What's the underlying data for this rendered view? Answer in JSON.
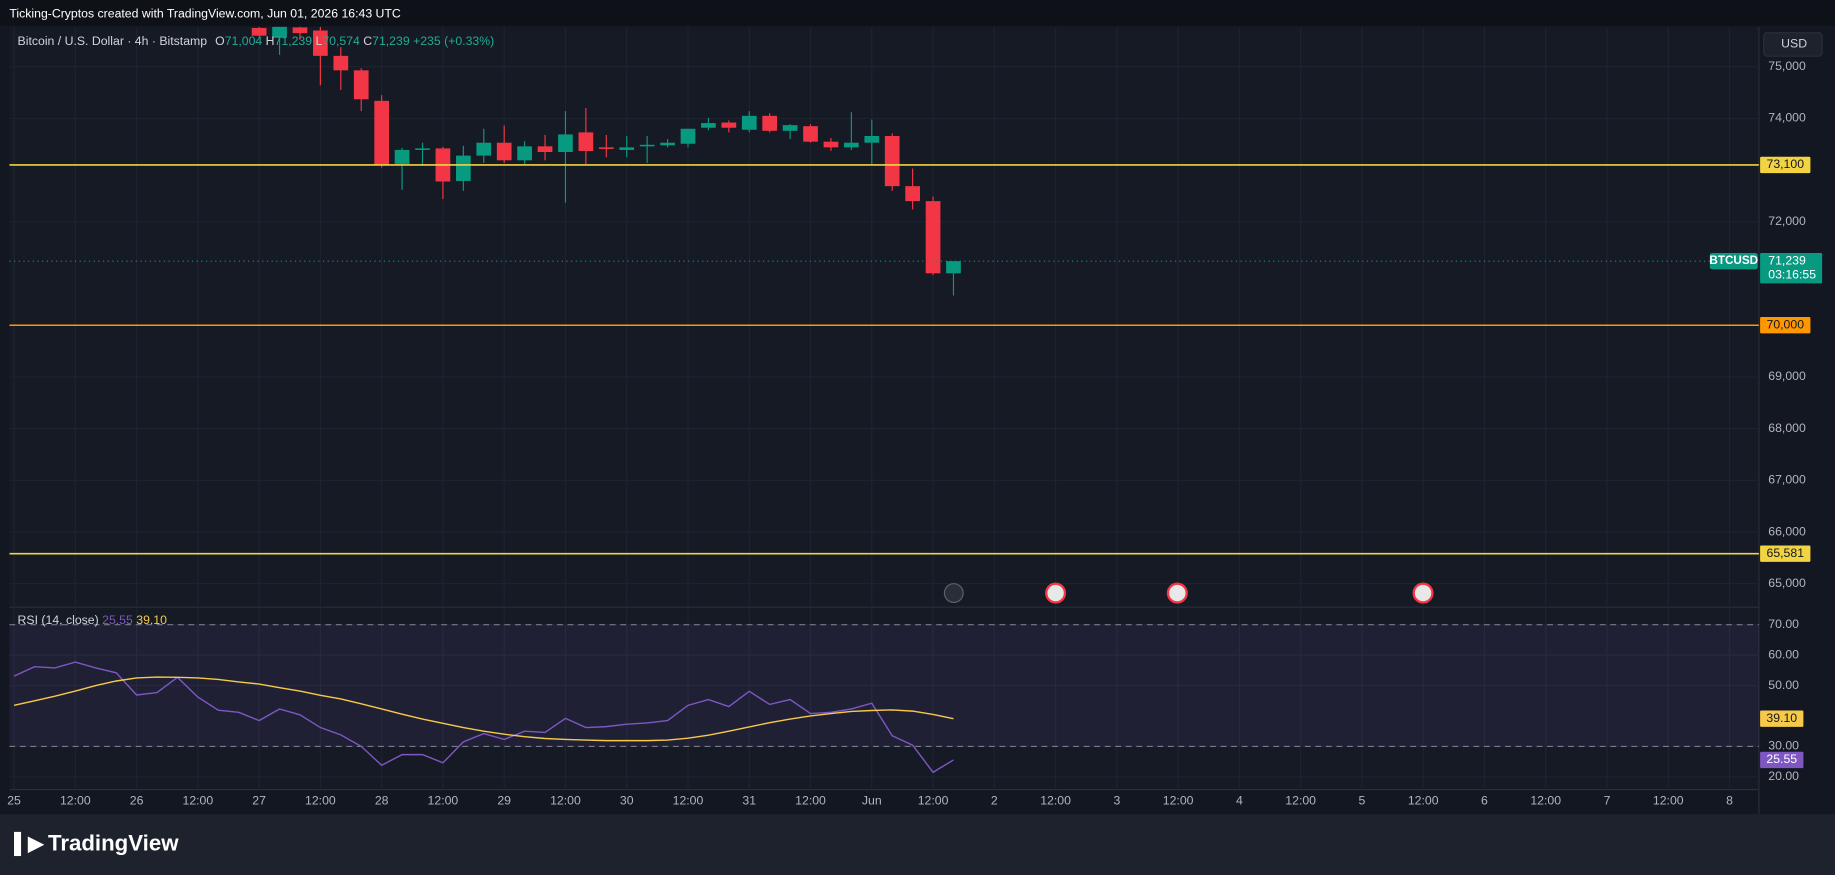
{
  "header": {
    "attribution": "Ticking-Cryptos created with TradingView.com, Jun 01, 2026 16:43 UTC",
    "currency": "USD",
    "brand": "TradingView"
  },
  "chart_data": [
    {
      "type": "candlestick",
      "title": "Bitcoin / U.S. Dollar · 4h · Bitstamp",
      "legend": {
        "open_prefix": "O",
        "open": "71,004",
        "high_prefix": "H",
        "high": "71,239",
        "low_prefix": "L",
        "low": "70,574",
        "close_prefix": "C",
        "close": "71,239",
        "change": "+235 (+0.33%)"
      },
      "x": [
        12,
        13,
        14,
        15,
        16,
        17,
        18,
        19,
        20,
        21,
        22,
        23,
        24,
        25,
        26,
        27,
        28,
        29,
        30,
        31,
        32,
        33,
        34,
        35,
        36,
        37,
        38,
        39,
        40,
        41,
        42,
        43,
        44,
        45,
        46
      ],
      "open": [
        75750,
        75560,
        75760,
        75700,
        75210,
        74930,
        74340,
        73120,
        73390,
        73420,
        72790,
        73280,
        73530,
        73190,
        73460,
        73350,
        73730,
        73440,
        73390,
        73460,
        73480,
        73510,
        73820,
        73920,
        73780,
        74050,
        73760,
        73850,
        73550,
        73440,
        73530,
        73660,
        72690,
        72400,
        71004
      ],
      "high": [
        75900,
        75800,
        75900,
        75800,
        75380,
        74970,
        74450,
        73430,
        73530,
        73450,
        73470,
        73800,
        73860,
        73560,
        73680,
        74140,
        74200,
        73680,
        73660,
        73660,
        73600,
        73800,
        74010,
        73960,
        74140,
        74100,
        73890,
        73890,
        73620,
        74120,
        73980,
        73710,
        73030,
        72490,
        71239
      ],
      "low": [
        75580,
        75230,
        75520,
        74640,
        74550,
        74140,
        73050,
        72620,
        73080,
        72440,
        72600,
        73140,
        73140,
        73120,
        73190,
        72370,
        73120,
        73250,
        73250,
        73140,
        73440,
        73440,
        73770,
        73730,
        73730,
        73730,
        73600,
        73530,
        73370,
        73390,
        73120,
        72600,
        72240,
        70970,
        70574
      ],
      "close": [
        75600,
        75780,
        75650,
        75210,
        74930,
        74370,
        73100,
        73390,
        73420,
        72780,
        73280,
        73530,
        73190,
        73460,
        73350,
        73690,
        73370,
        73410,
        73440,
        73490,
        73530,
        73800,
        73910,
        73820,
        74050,
        73760,
        73870,
        73550,
        73440,
        73530,
        73660,
        72690,
        72400,
        71004,
        71239
      ],
      "up_color": "#089981",
      "down_color": "#f23645",
      "xlim": [
        -0.23,
        85.44
      ],
      "xticks": [
        {
          "value": 0,
          "label": "25"
        },
        {
          "value": 3,
          "label": "12:00"
        },
        {
          "value": 6,
          "label": "26"
        },
        {
          "value": 9,
          "label": "12:00"
        },
        {
          "value": 12,
          "label": "27"
        },
        {
          "value": 15,
          "label": "12:00"
        },
        {
          "value": 18,
          "label": "28"
        },
        {
          "value": 21,
          "label": "12:00"
        },
        {
          "value": 24,
          "label": "29"
        },
        {
          "value": 27,
          "label": "12:00"
        },
        {
          "value": 30,
          "label": "30"
        },
        {
          "value": 33,
          "label": "12:00"
        },
        {
          "value": 36,
          "label": "31"
        },
        {
          "value": 39,
          "label": "12:00"
        },
        {
          "value": 42,
          "label": "Jun"
        },
        {
          "value": 45,
          "label": "12:00"
        },
        {
          "value": 48,
          "label": "2"
        },
        {
          "value": 51,
          "label": "12:00"
        },
        {
          "value": 54,
          "label": "3"
        },
        {
          "value": 57,
          "label": "12:00"
        },
        {
          "value": 60,
          "label": "4"
        },
        {
          "value": 63,
          "label": "12:00"
        },
        {
          "value": 66,
          "label": "5"
        },
        {
          "value": 69,
          "label": "12:00"
        },
        {
          "value": 72,
          "label": "6"
        },
        {
          "value": 75,
          "label": "12:00"
        },
        {
          "value": 78,
          "label": "7"
        },
        {
          "value": 81,
          "label": "12:00"
        },
        {
          "value": 84,
          "label": "8"
        }
      ],
      "ylim": [
        64570,
        75770
      ],
      "yticks": [
        {
          "value": 65000,
          "label": "65,000"
        },
        {
          "value": 66000,
          "label": "66,000"
        },
        {
          "value": 67000,
          "label": "67,000"
        },
        {
          "value": 68000,
          "label": "68,000"
        },
        {
          "value": 69000,
          "label": "69,000"
        },
        {
          "value": 72000,
          "label": "72,000"
        },
        {
          "value": 74000,
          "label": "74,000"
        },
        {
          "value": 75000,
          "label": "75,000"
        }
      ],
      "grid": true,
      "levels": [
        {
          "value": 73100,
          "label": "73,100",
          "color": "#f2d341"
        },
        {
          "value": 70000,
          "label": "70,000",
          "color": "#ff9800"
        },
        {
          "value": 65581,
          "label": "65,581",
          "color": "#f2d341"
        }
      ],
      "symbol_label": "BTCUSD",
      "countdown": "03:16:55"
    },
    {
      "type": "line",
      "title": "RSI (14, close)",
      "x": [
        0,
        1,
        2,
        3,
        4,
        5,
        6,
        7,
        8,
        9,
        10,
        11,
        12,
        13,
        14,
        15,
        16,
        17,
        18,
        19,
        20,
        21,
        22,
        23,
        24,
        25,
        26,
        27,
        28,
        29,
        30,
        31,
        32,
        33,
        34,
        35,
        36,
        37,
        38,
        39,
        40,
        41,
        42,
        43,
        44,
        45,
        46
      ],
      "series": [
        {
          "color": "#7e57c2",
          "values": [
            53.1,
            56.2,
            55.8,
            57.7,
            55.8,
            54.2,
            46.9,
            47.7,
            52.7,
            46.2,
            41.9,
            41.2,
            38.5,
            42.3,
            40.4,
            36.2,
            33.8,
            30,
            23.8,
            27.3,
            27.3,
            24.6,
            31.5,
            34.2,
            32.3,
            35,
            34.6,
            39.2,
            36.2,
            36.5,
            37.3,
            37.7,
            38.5,
            43.5,
            45.4,
            43.1,
            48.1,
            43.8,
            45.4,
            40.8,
            41.2,
            42.3,
            44.2,
            33.5,
            30.4,
            21.5,
            25.55
          ]
        },
        {
          "color": "#f7c948",
          "values": [
            43.5,
            45,
            46.5,
            48.2,
            50,
            51.5,
            52.5,
            52.8,
            52.7,
            52.5,
            52,
            51.2,
            50.5,
            49.3,
            48.2,
            46.8,
            45.6,
            44,
            42.3,
            40.6,
            39,
            37.6,
            36.2,
            35,
            34,
            33.2,
            32.6,
            32.3,
            32.1,
            31.9,
            31.9,
            31.9,
            32.1,
            32.7,
            33.7,
            35,
            36.4,
            37.8,
            39,
            40,
            40.8,
            41.5,
            41.8,
            42,
            41.6,
            40.5,
            39.1
          ],
          "value_labels": [
            null,
            null,
            null,
            null,
            null,
            null,
            null,
            null,
            null,
            null,
            null,
            null,
            null,
            null,
            null,
            null,
            null,
            null,
            null,
            null,
            null,
            null,
            null,
            null,
            null,
            null,
            null,
            null,
            null,
            null,
            null,
            null,
            null,
            null,
            null,
            null,
            null,
            null,
            null,
            null,
            null,
            null,
            null,
            null,
            null,
            null,
            "39.10"
          ]
        }
      ],
      "ylim": [
        15.8,
        75.4
      ],
      "yticks": [
        {
          "value": 20,
          "label": "20.00"
        },
        {
          "value": 30,
          "label": "30.00"
        },
        {
          "value": 50,
          "label": "50.00"
        },
        {
          "value": 60,
          "label": "60.00"
        },
        {
          "value": 70,
          "label": "70.00"
        }
      ],
      "band": [
        30,
        70
      ],
      "grid": true
    }
  ]
}
